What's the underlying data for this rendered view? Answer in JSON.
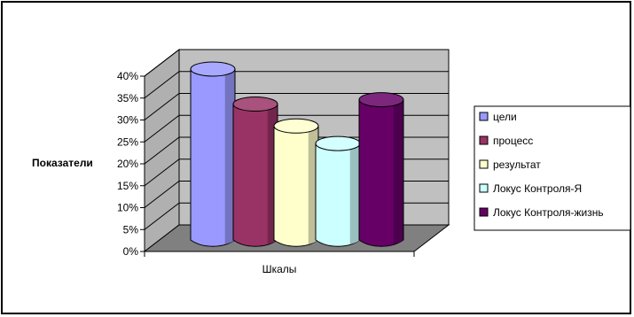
{
  "chart_data": {
    "type": "bar",
    "categories": [
      "Шкалы"
    ],
    "xlabel": "Шкалы",
    "ylabel": "Показатели",
    "ylim": [
      0,
      0.4
    ],
    "yticks": [
      "0%",
      "5%",
      "10%",
      "15%",
      "20%",
      "25%",
      "30%",
      "35%",
      "40%"
    ],
    "grid": true,
    "legend_position": "right",
    "series": [
      {
        "name": "цели",
        "values": [
          0.39
        ],
        "color": "#9999ff"
      },
      {
        "name": "процесс",
        "values": [
          0.31
        ],
        "color": "#993366"
      },
      {
        "name": "результат",
        "values": [
          0.26
        ],
        "color": "#ffffcc"
      },
      {
        "name": "Локус Контроля-Я",
        "values": [
          0.22
        ],
        "color": "#ccffff"
      },
      {
        "name": "Локус Контроля-жизнь",
        "values": [
          0.32
        ],
        "color": "#660066"
      }
    ]
  }
}
